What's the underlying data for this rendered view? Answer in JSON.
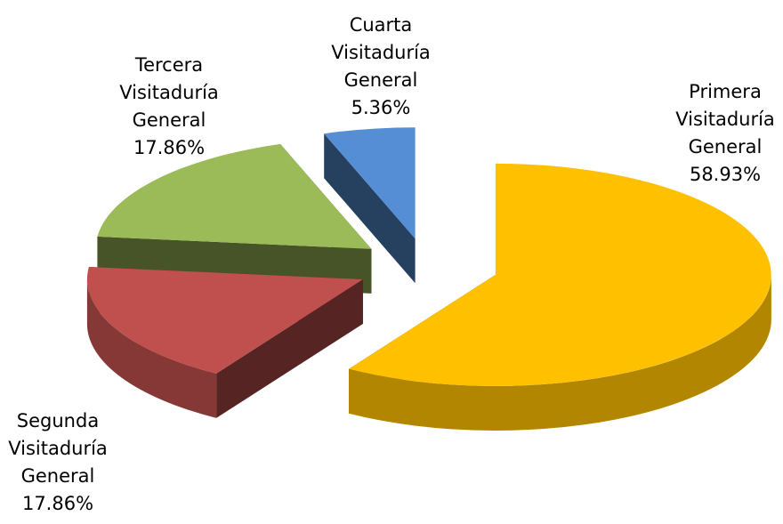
{
  "chart_data": {
    "type": "pie",
    "categories": [
      "Primera Visitaduría General",
      "Segunda Visitaduría General",
      "Tercera Visitaduría General",
      "Cuarta Visitaduría General"
    ],
    "values": [
      58.93,
      17.86,
      17.86,
      5.36
    ],
    "value_labels": [
      "58.93%",
      "17.86%",
      "17.86%",
      "5.36%"
    ],
    "colors": [
      "#ffc000",
      "#c0504d",
      "#9bbb59",
      "#558ed5"
    ]
  }
}
